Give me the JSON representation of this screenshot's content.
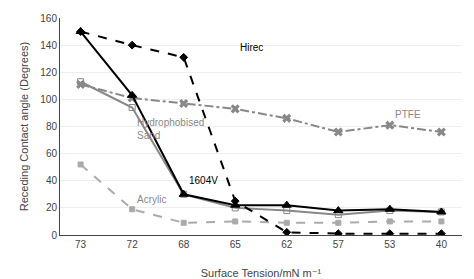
{
  "chart_data": {
    "type": "line",
    "categories": [
      "73",
      "72",
      "68",
      "65",
      "62",
      "57",
      "53",
      "40"
    ],
    "x_label": "Surface Tension/mN m⁻¹",
    "y_label": "Receding Contact angle (Degrees)",
    "ylim": [
      0,
      160
    ],
    "yticks": [
      0,
      20,
      40,
      60,
      80,
      100,
      120,
      140,
      160
    ],
    "grid": true,
    "series": [
      {
        "name": "PTFE",
        "color": "#888888",
        "marker": "x",
        "line_style": "dashdot",
        "values": [
          111,
          101,
          97,
          93,
          86,
          76,
          81,
          76
        ]
      },
      {
        "name": "Hydrophobised Sand",
        "color": "#888888",
        "marker": "square-open",
        "line_style": "solid",
        "values": [
          113,
          94,
          30,
          20,
          18,
          15,
          18,
          17
        ]
      },
      {
        "name": "Acrylic",
        "color": "#aaaaaa",
        "marker": "square",
        "line_style": "dash",
        "values": [
          52,
          19,
          9,
          10,
          9,
          9,
          10,
          10
        ]
      },
      {
        "name": "1604V",
        "color": "black",
        "marker": "triangle-up",
        "line_style": "solid",
        "values": [
          150,
          103,
          30,
          22,
          22,
          18,
          19,
          17
        ]
      },
      {
        "name": "Hirec",
        "color": "black",
        "marker": "diamond",
        "line_style": "dash",
        "values": [
          150,
          140,
          131,
          25,
          2,
          1,
          1,
          1
        ]
      }
    ],
    "annotations": [
      {
        "text": "Hirec",
        "category": "65",
        "y": 133,
        "color": "black"
      },
      {
        "text": "1604V",
        "category": "68",
        "y": 35,
        "color": "black"
      },
      {
        "text": "PTFE",
        "category": "53",
        "y": 83,
        "color": "#888888"
      },
      {
        "text": "Hydrophobised\nSand",
        "category": "72",
        "y": 68,
        "color": "#888888"
      },
      {
        "text": "Acrylic",
        "category": "72",
        "y": 21,
        "color": "#888888"
      }
    ]
  }
}
